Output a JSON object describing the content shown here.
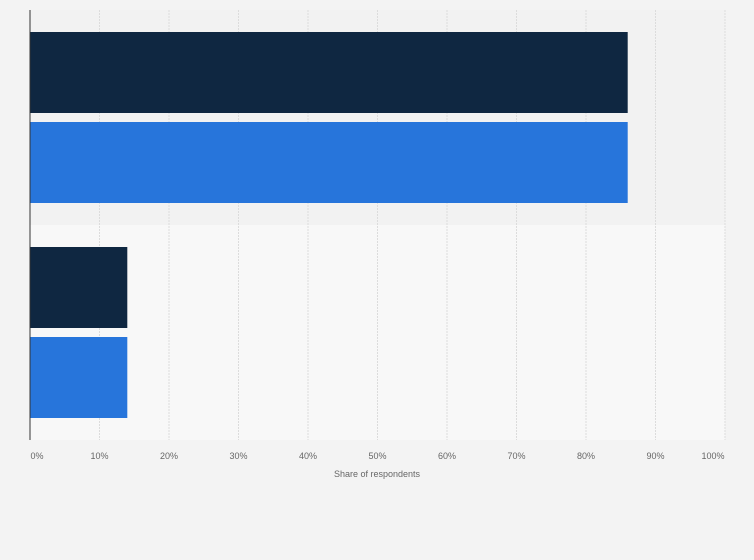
{
  "chart_data": {
    "type": "bar",
    "orientation": "horizontal",
    "title": "",
    "xlabel": "Share of respondents",
    "ylabel": "",
    "xlim": [
      0,
      100
    ],
    "x_ticks": [
      "0%",
      "10%",
      "20%",
      "30%",
      "40%",
      "50%",
      "60%",
      "70%",
      "80%",
      "90%",
      "100%"
    ],
    "grid": true,
    "legend": "none",
    "groups": 2,
    "series": [
      {
        "values": [
          86,
          14
        ],
        "color": "#0f2741"
      },
      {
        "values": [
          86,
          14
        ],
        "color": "#2775db"
      }
    ]
  }
}
